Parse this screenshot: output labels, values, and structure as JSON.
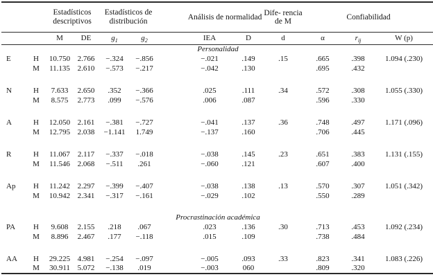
{
  "table": {
    "groups": [
      {
        "label": "",
        "span": 2
      },
      {
        "label": "Estadísticos descriptivos",
        "span": 2
      },
      {
        "label": "Estadísticos de distribución",
        "span": 2
      },
      {
        "label": "Análisis de normalidad",
        "span": 2
      },
      {
        "label": "Dife-\nrencia\nde M",
        "span": 1
      },
      {
        "label": "Confiabilidad",
        "span": 3
      }
    ],
    "columns": [
      {
        "base": "",
        "sub": ""
      },
      {
        "base": "",
        "sub": ""
      },
      {
        "base": "M",
        "sub": ""
      },
      {
        "base": "DE",
        "sub": ""
      },
      {
        "base": "g",
        "sub": "1"
      },
      {
        "base": "g",
        "sub": "2"
      },
      {
        "base": "IEA",
        "sub": ""
      },
      {
        "base": "D",
        "sub": ""
      },
      {
        "base": "d",
        "sub": ""
      },
      {
        "base": "α",
        "sub": ""
      },
      {
        "base": "r",
        "sub": "ij"
      },
      {
        "base": "W (p)",
        "sub": ""
      }
    ],
    "rows": [
      {
        "type": "section",
        "label": "Personalidad"
      },
      {
        "type": "data",
        "cells": [
          "E",
          "H",
          "10.750",
          "2.766",
          "−.324",
          "−.856",
          "−.021",
          ".149",
          ".15",
          ".665",
          ".398",
          "1.094 (.230)"
        ]
      },
      {
        "type": "data",
        "cells": [
          "",
          "M",
          "11.135",
          "2.610",
          "−.573",
          "−.217",
          "−.042",
          ".130",
          "",
          ".695",
          ".432",
          ""
        ]
      },
      {
        "type": "spacer"
      },
      {
        "type": "data",
        "cells": [
          "N",
          "H",
          "7.633",
          "2.650",
          ".352",
          "−.366",
          ".025",
          ".111",
          ".34",
          ".572",
          ".308",
          "1.055 (.330)"
        ]
      },
      {
        "type": "data",
        "cells": [
          "",
          "M",
          "8.575",
          "2.773",
          ".099",
          "−.576",
          ".006",
          ".087",
          "",
          ".596",
          ".330",
          ""
        ]
      },
      {
        "type": "spacer"
      },
      {
        "type": "data",
        "cells": [
          "A",
          "H",
          "12.050",
          "2.161",
          "−.381",
          "−.727",
          "−.041",
          ".137",
          ".36",
          ".748",
          ".497",
          "1.171 (.096)"
        ]
      },
      {
        "type": "data",
        "cells": [
          "",
          "M",
          "12.795",
          "2.038",
          "−1.141",
          "1.749",
          "−.137",
          ".160",
          "",
          ".706",
          ".445",
          ""
        ]
      },
      {
        "type": "spacer"
      },
      {
        "type": "data",
        "cells": [
          "R",
          "H",
          "11.067",
          "2.117",
          "−.337",
          "−.018",
          "−.038",
          ".145",
          ".23",
          ".651",
          ".383",
          "1.131 (.155)"
        ]
      },
      {
        "type": "data",
        "cells": [
          "",
          "M",
          "11.546",
          "2.068",
          "−.511",
          ".261",
          "−.060",
          ".121",
          "",
          ".607",
          ".400",
          ""
        ]
      },
      {
        "type": "spacer"
      },
      {
        "type": "data",
        "cells": [
          "Ap",
          "H",
          "11.242",
          "2.297",
          "−.399",
          "−.407",
          "−.038",
          ".138",
          ".13",
          ".570",
          ".307",
          "1.051 (.342)"
        ]
      },
      {
        "type": "data",
        "cells": [
          "",
          "M",
          "10.942",
          "2.341",
          "−.317",
          "−.161",
          "−.029",
          ".102",
          "",
          ".550",
          ".289",
          ""
        ]
      },
      {
        "type": "spacer"
      },
      {
        "type": "section",
        "label": "Procrastinación académica"
      },
      {
        "type": "data",
        "cells": [
          "PA",
          "H",
          "9.608",
          "2.155",
          ".218",
          ".067",
          ".023",
          ".136",
          ".30",
          ".713",
          ".453",
          "1.092 (.234)"
        ]
      },
      {
        "type": "data",
        "cells": [
          "",
          "M",
          "8.896",
          "2.467",
          ".177",
          "−.118",
          ".015",
          ".109",
          "",
          ".738",
          ".484",
          ""
        ]
      },
      {
        "type": "spacer"
      },
      {
        "type": "data",
        "cells": [
          "AA",
          "H",
          "29.225",
          "4.981",
          "−.254",
          "−.097",
          "−.005",
          ".093",
          ".33",
          ".823",
          ".341",
          "1.083 (.226)"
        ]
      },
      {
        "type": "data",
        "cells": [
          "",
          "M",
          "30.911",
          "5.072",
          "−.138",
          ".019",
          "−.003",
          "060",
          "",
          ".809",
          ".320",
          ""
        ]
      }
    ]
  }
}
